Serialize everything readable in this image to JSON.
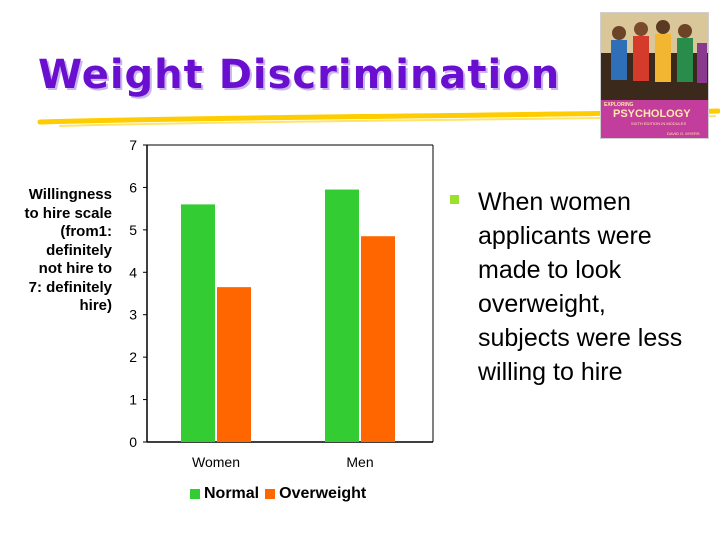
{
  "slide": {
    "title": "Weight Discrimination",
    "bullet": {
      "lines": [
        "When women",
        "applicants were",
        "made to look",
        "overweight,",
        "subjects were less",
        "willing to hire"
      ]
    },
    "book_cover": {
      "kicker": "EXPLORING",
      "title": "PSYCHOLOGY",
      "edition": "SIXTH EDITION IN MODULES",
      "author": "DAVID G. MYERS"
    }
  },
  "colors": {
    "title": "#6a0fd0",
    "normal": "#33cc33",
    "overweight": "#ff6600",
    "bullet": "#9be02a",
    "underline": "#ffcc00"
  },
  "chart_data": {
    "type": "bar",
    "ylabel_lines": [
      "Willingness",
      "to hire scale",
      "(from1:",
      "definitely",
      "not hire to",
      "7: definitely",
      "hire)"
    ],
    "ylim": [
      0,
      7
    ],
    "yticks": [
      "0",
      "1",
      "2",
      "3",
      "4",
      "5",
      "6",
      "7"
    ],
    "categories": [
      "Women",
      "Men"
    ],
    "series": [
      {
        "name": "Normal",
        "values": [
          5.6,
          5.95
        ]
      },
      {
        "name": "Overweight",
        "values": [
          3.65,
          4.85
        ]
      }
    ],
    "grid": false,
    "legend": "bottom"
  }
}
